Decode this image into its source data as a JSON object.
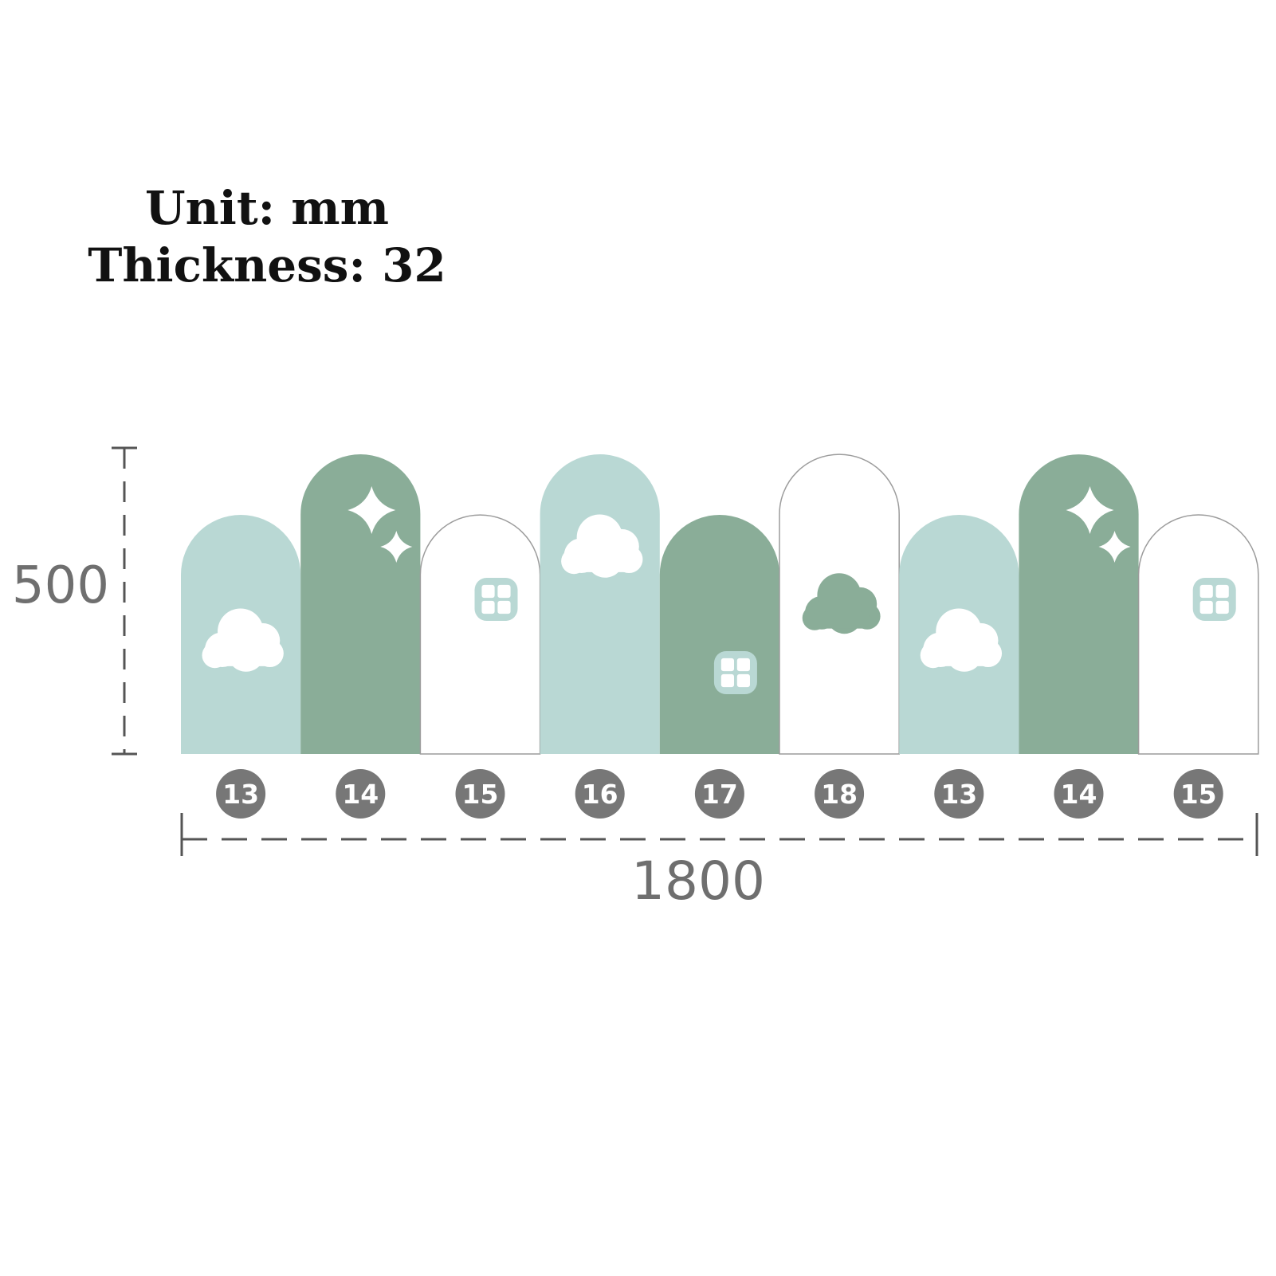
{
  "spec": {
    "unit": "Unit: mm",
    "thickness": "Thickness: 32"
  },
  "dimensions": {
    "height": "500",
    "width": "1800"
  },
  "colors": {
    "mint": "#b9d8d4",
    "sage": "#8aad98",
    "white": "#ffffff",
    "outline": "#9c9c9c",
    "badge": "#777777",
    "window_mint": "#b9d8d4",
    "dim_line": "#555555"
  },
  "panels": [
    {
      "number": "13",
      "color": "mint",
      "height": "short",
      "decor": "cloud-white"
    },
    {
      "number": "14",
      "color": "sage",
      "height": "tall",
      "decor": "stars-white"
    },
    {
      "number": "15",
      "color": "white",
      "height": "short",
      "decor": "window-mint"
    },
    {
      "number": "16",
      "color": "mint",
      "height": "tall",
      "decor": "cloud-white"
    },
    {
      "number": "17",
      "color": "sage",
      "height": "short",
      "decor": "window-mint"
    },
    {
      "number": "18",
      "color": "white",
      "height": "tall",
      "decor": "cloud-sage"
    },
    {
      "number": "13",
      "color": "mint",
      "height": "short",
      "decor": "cloud-white"
    },
    {
      "number": "14",
      "color": "sage",
      "height": "tall",
      "decor": "stars-white"
    },
    {
      "number": "15",
      "color": "white",
      "height": "short",
      "decor": "window-mint"
    }
  ]
}
